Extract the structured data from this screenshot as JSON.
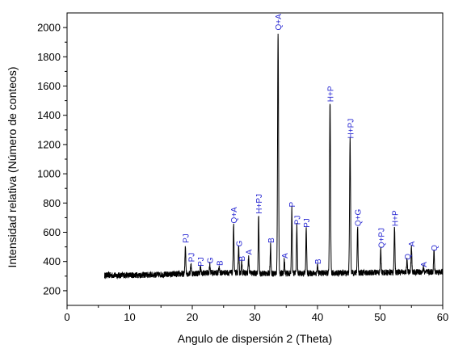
{
  "chart_data": {
    "type": "line",
    "title": "",
    "xlabel": "Angulo de dispersión 2 (Theta)",
    "ylabel": "Intensidad relativa (Número de conteos)",
    "xlim": [
      0,
      60
    ],
    "ylim": [
      100,
      2100
    ],
    "x_ticks": [
      0,
      10,
      20,
      30,
      40,
      50,
      60
    ],
    "x_tick_labels": [
      "0",
      "10",
      "20",
      "30",
      "40",
      "50",
      "60"
    ],
    "y_ticks": [
      200,
      400,
      600,
      800,
      1000,
      1200,
      1400,
      1600,
      1800,
      2000
    ],
    "y_tick_labels": [
      "200",
      "400",
      "600",
      "800",
      "1000",
      "1200",
      "1400",
      "1600",
      "1800",
      "2000"
    ],
    "grid": false,
    "line_color": "#000000",
    "annotation_color": "#1f1fd0",
    "x_range": [
      6,
      60
    ],
    "baseline": 305,
    "peaks": [
      {
        "x": 18.9,
        "y": 500
      },
      {
        "x": 19.8,
        "y": 370
      },
      {
        "x": 21.3,
        "y": 345
      },
      {
        "x": 22.8,
        "y": 365
      },
      {
        "x": 24.3,
        "y": 345
      },
      {
        "x": 26.6,
        "y": 640
      },
      {
        "x": 27.4,
        "y": 480
      },
      {
        "x": 27.9,
        "y": 380
      },
      {
        "x": 29.0,
        "y": 420
      },
      {
        "x": 30.6,
        "y": 700
      },
      {
        "x": 32.5,
        "y": 500
      },
      {
        "x": 33.7,
        "y": 1960
      },
      {
        "x": 34.7,
        "y": 400
      },
      {
        "x": 35.9,
        "y": 750
      },
      {
        "x": 36.7,
        "y": 630
      },
      {
        "x": 38.2,
        "y": 610
      },
      {
        "x": 40.0,
        "y": 360
      },
      {
        "x": 42.0,
        "y": 1470
      },
      {
        "x": 45.2,
        "y": 1220
      },
      {
        "x": 46.4,
        "y": 620
      },
      {
        "x": 50.1,
        "y": 470
      },
      {
        "x": 52.3,
        "y": 620
      },
      {
        "x": 54.3,
        "y": 390
      },
      {
        "x": 55.0,
        "y": 480
      },
      {
        "x": 56.9,
        "y": 340
      },
      {
        "x": 58.6,
        "y": 450
      }
    ],
    "annotations": [
      {
        "text": "PJ",
        "x": 18.9,
        "y": 515
      },
      {
        "text": "PJ",
        "x": 19.8,
        "y": 385
      },
      {
        "text": "PJ",
        "x": 21.3,
        "y": 355
      },
      {
        "text": "G",
        "x": 22.8,
        "y": 375
      },
      {
        "text": "B",
        "x": 24.3,
        "y": 360
      },
      {
        "text": "Q+A",
        "x": 26.6,
        "y": 650
      },
      {
        "text": "G",
        "x": 27.4,
        "y": 490
      },
      {
        "text": "B",
        "x": 27.9,
        "y": 390
      },
      {
        "text": "A",
        "x": 29.0,
        "y": 435
      },
      {
        "text": "H+PJ",
        "x": 30.6,
        "y": 715
      },
      {
        "text": "B",
        "x": 32.5,
        "y": 515
      },
      {
        "text": "Q+A",
        "x": 33.7,
        "y": 1970
      },
      {
        "text": "A",
        "x": 34.7,
        "y": 410
      },
      {
        "text": "P",
        "x": 35.9,
        "y": 760
      },
      {
        "text": "PJ",
        "x": 36.7,
        "y": 640
      },
      {
        "text": "PJ",
        "x": 38.2,
        "y": 620
      },
      {
        "text": "B",
        "x": 40.0,
        "y": 370
      },
      {
        "text": "H+P",
        "x": 42.0,
        "y": 1480
      },
      {
        "text": "H+PJ",
        "x": 45.2,
        "y": 1230
      },
      {
        "text": "Q+G",
        "x": 46.4,
        "y": 630
      },
      {
        "text": "Q+PJ",
        "x": 50.1,
        "y": 480
      },
      {
        "text": "H+P",
        "x": 52.3,
        "y": 630
      },
      {
        "text": "Q",
        "x": 54.3,
        "y": 400
      },
      {
        "text": "A",
        "x": 55.0,
        "y": 490
      },
      {
        "text": "A",
        "x": 56.9,
        "y": 350
      },
      {
        "text": "Q",
        "x": 58.6,
        "y": 460
      }
    ]
  }
}
